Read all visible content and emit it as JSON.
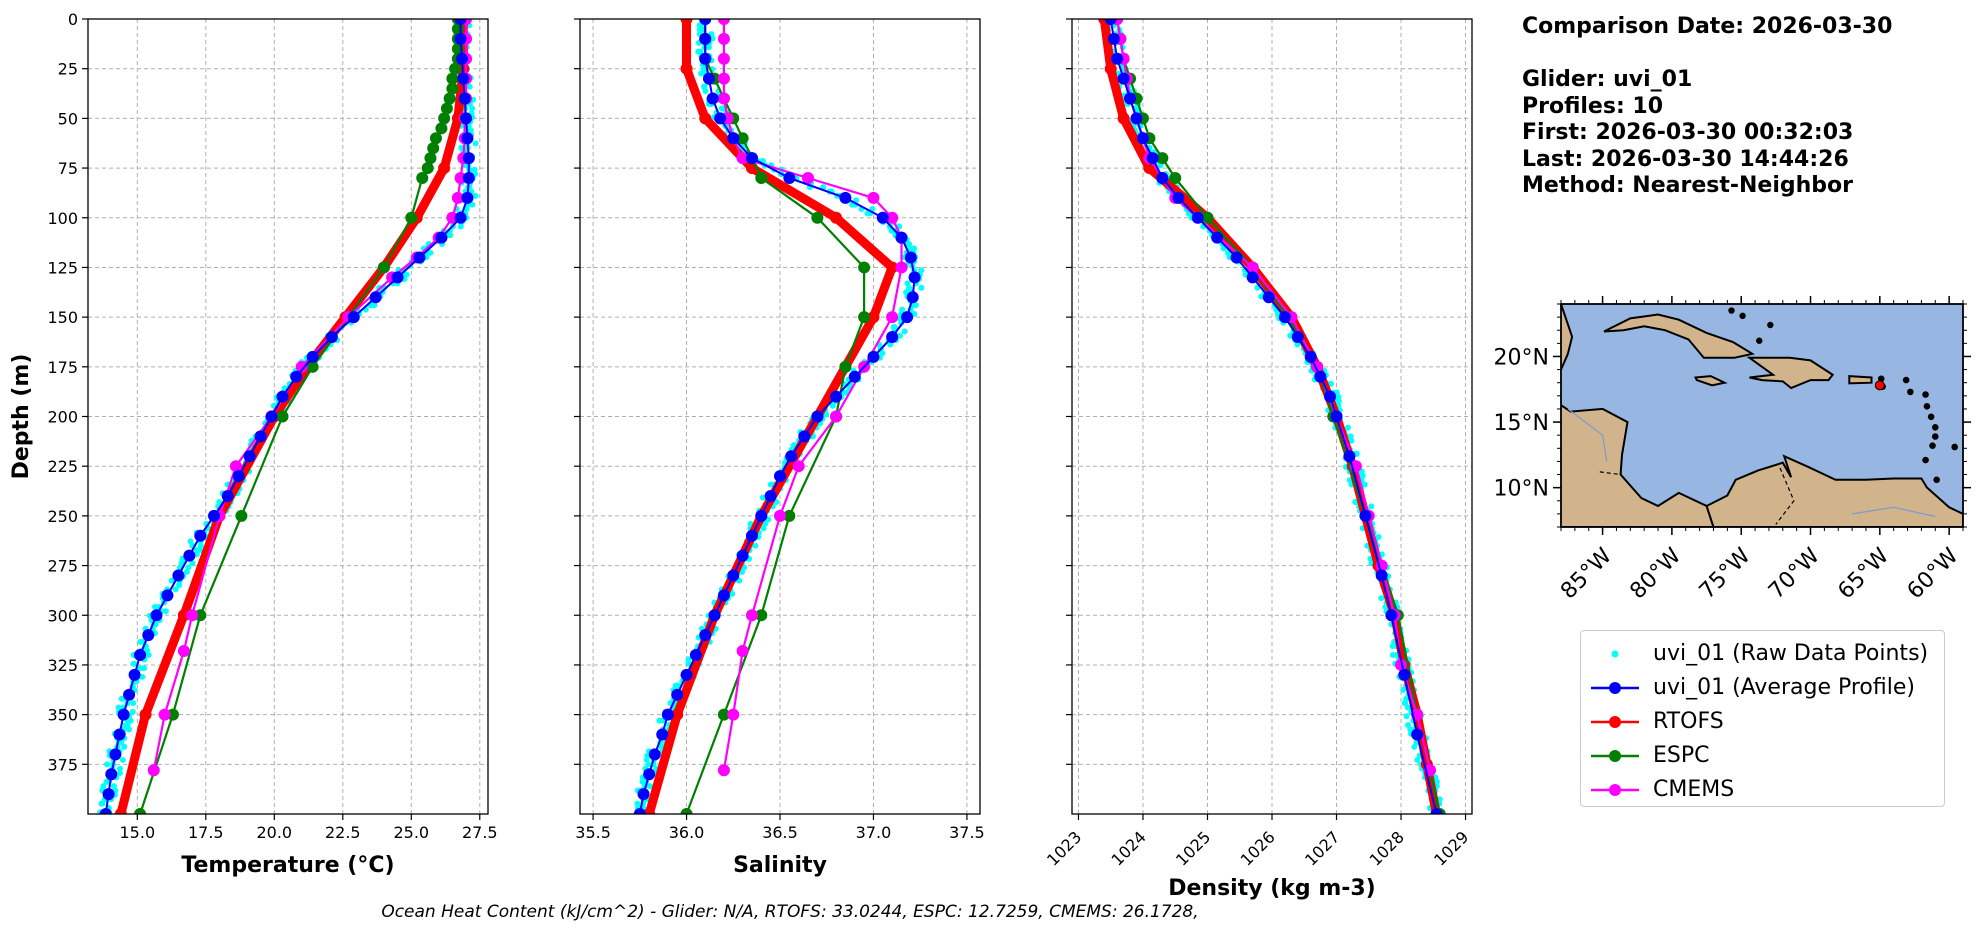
{
  "info": {
    "comparison": "Comparison Date: 2026-03-30",
    "glider": "Glider: uvi_01",
    "profiles": "Profiles: 10",
    "first": "First: 2026-03-30 00:32:03",
    "last": "Last: 2026-03-30 14:44:26",
    "method": "Method: Nearest-Neighbor"
  },
  "footer": "Ocean Heat Content (kJ/cm^2) - Glider: N/A,  RTOFS: 33.0244,  ESPC: 12.7259,  CMEMS: 26.1728,",
  "legend": [
    {
      "label": "uvi_01 (Raw Data Points)",
      "color": "#00ffff",
      "style": "dot"
    },
    {
      "label": "uvi_01 (Average Profile)",
      "color": "#0000ff",
      "style": "line-marker"
    },
    {
      "label": "RTOFS",
      "color": "#ff0000",
      "style": "line-marker"
    },
    {
      "label": "ESPC",
      "color": "#008000",
      "style": "line-marker"
    },
    {
      "label": "CMEMS",
      "color": "#ff00ff",
      "style": "line-marker"
    }
  ],
  "colors": {
    "raw": "#00ffff",
    "glider": "#0000ff",
    "rtofs": "#ff0000",
    "espc": "#008000",
    "cmems": "#ff00ff",
    "ocean": "#97b6e1",
    "land": "#d2b48c"
  },
  "chart_data": [
    {
      "type": "line",
      "xlabel": "Temperature (°C)",
      "ylabel": "Depth (m)",
      "xlim": [
        13.2,
        27.8
      ],
      "ylim": [
        400,
        0
      ],
      "xticks": [
        "15.0",
        "17.5",
        "20.0",
        "22.5",
        "25.0",
        "27.5"
      ],
      "xtick_values": [
        15,
        17.5,
        20,
        22.5,
        25,
        27.5
      ],
      "yticks": [
        "0",
        "25",
        "50",
        "75",
        "100",
        "125",
        "150",
        "175",
        "200",
        "225",
        "250",
        "275",
        "300",
        "325",
        "350",
        "375"
      ],
      "grid": true,
      "series": [
        {
          "name": "uvi_01 (Average Profile)",
          "key": "glider",
          "depth": [
            0,
            10,
            20,
            30,
            40,
            50,
            60,
            70,
            80,
            90,
            100,
            110,
            120,
            130,
            140,
            150,
            160,
            170,
            180,
            190,
            200,
            210,
            220,
            230,
            240,
            250,
            260,
            270,
            280,
            290,
            300,
            310,
            320,
            330,
            340,
            350,
            360,
            370,
            380,
            390,
            400
          ],
          "values": [
            26.8,
            26.8,
            26.85,
            26.9,
            26.95,
            27.0,
            27.05,
            27.1,
            27.1,
            27.05,
            26.8,
            26.1,
            25.3,
            24.5,
            23.7,
            22.9,
            22.1,
            21.4,
            20.8,
            20.3,
            19.9,
            19.5,
            19.1,
            18.7,
            18.3,
            17.8,
            17.3,
            16.9,
            16.5,
            16.1,
            15.7,
            15.4,
            15.1,
            14.9,
            14.7,
            14.5,
            14.35,
            14.2,
            14.05,
            13.95,
            13.85
          ]
        },
        {
          "name": "RTOFS",
          "key": "rtofs",
          "depth": [
            0,
            25,
            50,
            75,
            100,
            125,
            150,
            175,
            200,
            250,
            300,
            350,
            400
          ],
          "values": [
            26.9,
            26.9,
            26.7,
            26.2,
            25.2,
            24.0,
            22.6,
            21.2,
            20.0,
            18.0,
            16.7,
            15.3,
            14.4
          ]
        },
        {
          "name": "ESPC",
          "key": "espc",
          "depth": [
            0,
            5,
            10,
            15,
            20,
            25,
            30,
            35,
            40,
            45,
            50,
            55,
            60,
            65,
            70,
            75,
            80,
            100,
            125,
            150,
            175,
            200,
            250,
            300,
            350,
            400
          ],
          "values": [
            26.7,
            26.7,
            26.7,
            26.7,
            26.7,
            26.6,
            26.5,
            26.5,
            26.4,
            26.3,
            26.2,
            26.1,
            25.9,
            25.8,
            25.7,
            25.6,
            25.4,
            25.0,
            24.0,
            22.7,
            21.4,
            20.3,
            18.8,
            17.3,
            16.3,
            15.1
          ]
        },
        {
          "name": "CMEMS",
          "key": "cmems",
          "depth": [
            0,
            10,
            20,
            30,
            40,
            50,
            60,
            70,
            80,
            90,
            100,
            110,
            120,
            130,
            150,
            175,
            200,
            225,
            250,
            300,
            318,
            350,
            378
          ],
          "values": [
            27.0,
            27.0,
            27.0,
            27.0,
            27.0,
            26.95,
            26.95,
            26.9,
            26.8,
            26.7,
            26.5,
            26.0,
            25.2,
            24.3,
            22.7,
            21.0,
            19.9,
            18.6,
            18.0,
            17.0,
            16.7,
            16.0,
            15.6
          ]
        }
      ]
    },
    {
      "type": "line",
      "xlabel": "Salinity",
      "xlim": [
        35.43,
        37.57
      ],
      "ylim": [
        400,
        0
      ],
      "xticks": [
        "35.5",
        "36.0",
        "36.5",
        "37.0",
        "37.5"
      ],
      "xtick_values": [
        35.5,
        36.0,
        36.5,
        37.0,
        37.5
      ],
      "grid": true,
      "series": [
        {
          "name": "uvi_01 (Average Profile)",
          "key": "glider",
          "depth": [
            0,
            10,
            20,
            30,
            40,
            50,
            60,
            70,
            80,
            90,
            100,
            110,
            120,
            130,
            140,
            150,
            160,
            170,
            180,
            190,
            200,
            210,
            220,
            230,
            240,
            250,
            260,
            270,
            280,
            290,
            300,
            310,
            320,
            330,
            340,
            350,
            360,
            370,
            380,
            390,
            400
          ],
          "values": [
            36.1,
            36.1,
            36.1,
            36.12,
            36.14,
            36.18,
            36.25,
            36.35,
            36.55,
            36.85,
            37.05,
            37.15,
            37.2,
            37.22,
            37.21,
            37.18,
            37.1,
            37.0,
            36.9,
            36.8,
            36.7,
            36.63,
            36.56,
            36.5,
            36.45,
            36.4,
            36.35,
            36.3,
            36.25,
            36.2,
            36.15,
            36.1,
            36.05,
            36.0,
            35.95,
            35.9,
            35.87,
            35.83,
            35.8,
            35.77,
            35.75
          ]
        },
        {
          "name": "RTOFS",
          "key": "rtofs",
          "depth": [
            0,
            25,
            50,
            75,
            100,
            125,
            150,
            175,
            200,
            250,
            300,
            350,
            400
          ],
          "values": [
            36.0,
            36.0,
            36.1,
            36.35,
            36.8,
            37.1,
            37.0,
            36.85,
            36.7,
            36.4,
            36.15,
            35.95,
            35.8
          ]
        },
        {
          "name": "ESPC",
          "key": "espc",
          "depth": [
            0,
            10,
            20,
            30,
            40,
            50,
            60,
            70,
            80,
            100,
            125,
            150,
            175,
            200,
            250,
            300,
            350,
            400
          ],
          "values": [
            36.1,
            36.1,
            36.1,
            36.15,
            36.2,
            36.25,
            36.3,
            36.35,
            36.4,
            36.7,
            36.95,
            36.95,
            36.85,
            36.8,
            36.55,
            36.4,
            36.2,
            36.0
          ]
        },
        {
          "name": "CMEMS",
          "key": "cmems",
          "depth": [
            0,
            10,
            20,
            30,
            40,
            50,
            60,
            70,
            80,
            90,
            100,
            110,
            125,
            150,
            175,
            200,
            225,
            250,
            300,
            318,
            350,
            378
          ],
          "values": [
            36.2,
            36.2,
            36.2,
            36.2,
            36.2,
            36.22,
            36.25,
            36.3,
            36.65,
            37.0,
            37.1,
            37.15,
            37.15,
            37.1,
            36.95,
            36.8,
            36.6,
            36.5,
            36.35,
            36.3,
            36.25,
            36.2
          ]
        }
      ]
    },
    {
      "type": "line",
      "xlabel": "Density (kg m-3)",
      "xlim": [
        1022.9,
        1029.1
      ],
      "ylim": [
        400,
        0
      ],
      "xticks": [
        "1023",
        "1024",
        "1025",
        "1026",
        "1027",
        "1028",
        "1029"
      ],
      "xtick_values": [
        1023,
        1024,
        1025,
        1026,
        1027,
        1028,
        1029
      ],
      "grid": true,
      "series": [
        {
          "name": "uvi_01 (Average Profile)",
          "key": "glider",
          "depth": [
            0,
            10,
            20,
            30,
            40,
            50,
            60,
            70,
            80,
            90,
            100,
            110,
            120,
            130,
            140,
            150,
            160,
            170,
            180,
            190,
            200,
            220,
            250,
            280,
            300,
            330,
            360,
            400
          ],
          "values": [
            1023.5,
            1023.55,
            1023.6,
            1023.7,
            1023.8,
            1023.9,
            1024.0,
            1024.15,
            1024.3,
            1024.55,
            1024.85,
            1025.15,
            1025.45,
            1025.7,
            1025.95,
            1026.2,
            1026.4,
            1026.6,
            1026.75,
            1026.9,
            1027.0,
            1027.2,
            1027.45,
            1027.7,
            1027.85,
            1028.05,
            1028.25,
            1028.55
          ]
        },
        {
          "name": "RTOFS",
          "key": "rtofs",
          "depth": [
            0,
            25,
            50,
            75,
            100,
            125,
            150,
            175,
            200,
            225,
            250,
            275,
            300,
            325,
            350,
            375,
            400
          ],
          "values": [
            1023.4,
            1023.5,
            1023.7,
            1024.1,
            1025.0,
            1025.7,
            1026.3,
            1026.7,
            1027.0,
            1027.25,
            1027.45,
            1027.65,
            1027.9,
            1028.05,
            1028.25,
            1028.4,
            1028.55
          ]
        },
        {
          "name": "ESPC",
          "key": "espc",
          "depth": [
            0,
            10,
            20,
            30,
            40,
            50,
            60,
            70,
            80,
            100,
            125,
            150,
            175,
            200,
            250,
            300,
            350,
            400
          ],
          "values": [
            1023.6,
            1023.65,
            1023.7,
            1023.8,
            1023.9,
            1024.0,
            1024.1,
            1024.3,
            1024.5,
            1025.0,
            1025.7,
            1026.25,
            1026.7,
            1026.95,
            1027.45,
            1027.95,
            1028.25,
            1028.6
          ]
        },
        {
          "name": "CMEMS",
          "key": "cmems",
          "depth": [
            0,
            10,
            20,
            30,
            40,
            50,
            60,
            70,
            80,
            90,
            100,
            125,
            150,
            175,
            200,
            225,
            250,
            275,
            300,
            325,
            350,
            378
          ],
          "values": [
            1023.6,
            1023.65,
            1023.7,
            1023.75,
            1023.8,
            1023.9,
            1024.0,
            1024.1,
            1024.3,
            1024.5,
            1024.85,
            1025.7,
            1026.3,
            1026.7,
            1027.0,
            1027.3,
            1027.5,
            1027.7,
            1027.9,
            1028.0,
            1028.25,
            1028.45
          ]
        }
      ]
    }
  ],
  "map": {
    "lat_ticks": [
      "20°N",
      "15°N",
      "10°N"
    ],
    "lat_values": [
      20,
      15,
      10
    ],
    "lon_ticks": [
      "85°W",
      "80°W",
      "75°W",
      "70°W",
      "65°W",
      "60°W"
    ],
    "lon_values": [
      -85,
      -80,
      -75,
      -70,
      -65,
      -60
    ],
    "lon_range": [
      -88,
      -59
    ],
    "lat_range": [
      7,
      24
    ],
    "glider_position": [
      -65.0,
      17.8
    ]
  }
}
